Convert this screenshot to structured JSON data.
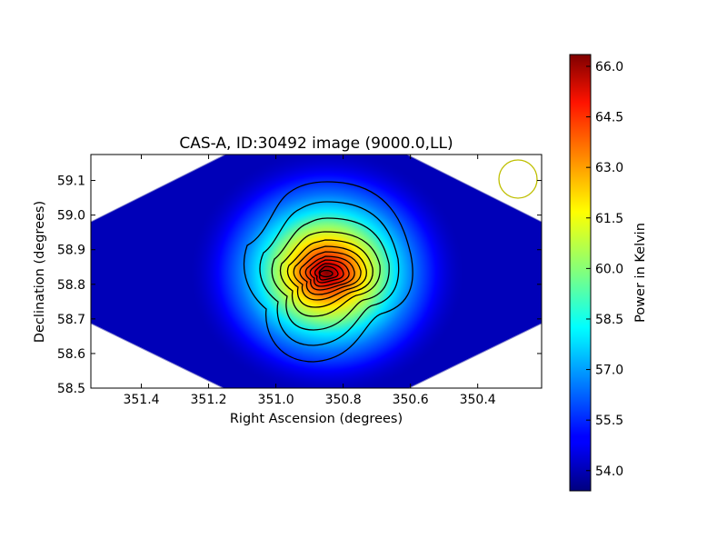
{
  "chart_data": {
    "type": "heatmap",
    "title": "CAS-A, ID:30492 image (9000.0,LL)",
    "xlabel": "Right Ascension (degrees)",
    "ylabel": "Declination (degrees)",
    "xlim": [
      351.55,
      350.21
    ],
    "ylim": [
      58.5,
      59.175
    ],
    "xticks": [
      351.4,
      351.2,
      351.0,
      350.8,
      350.6,
      350.4
    ],
    "xtick_labels": [
      "351.4",
      "351.2",
      "351.0",
      "350.8",
      "350.6",
      "350.4"
    ],
    "yticks": [
      58.5,
      58.6,
      58.7,
      58.8,
      58.9,
      59.0,
      59.1
    ],
    "ytick_labels": [
      "58.5",
      "58.6",
      "58.7",
      "58.8",
      "58.9",
      "59.0",
      "59.1"
    ],
    "colorbar": {
      "label": "Power in Kelvin",
      "range": [
        53.4,
        66.35
      ],
      "ticks": [
        54.0,
        55.5,
        57.0,
        58.5,
        60.0,
        61.5,
        63.0,
        64.5,
        66.0
      ],
      "tick_labels": [
        "54.0",
        "55.5",
        "57.0",
        "58.5",
        "60.0",
        "61.5",
        "63.0",
        "64.5",
        "66.0"
      ],
      "colormap": "jet"
    },
    "peak": {
      "x": 350.86,
      "y": 58.835,
      "value": 66.3
    },
    "background_value": 53.5,
    "contours": true,
    "beam_marker": {
      "shape": "circle",
      "color": "#bfbf00",
      "position": "top-right"
    },
    "grid": false
  }
}
